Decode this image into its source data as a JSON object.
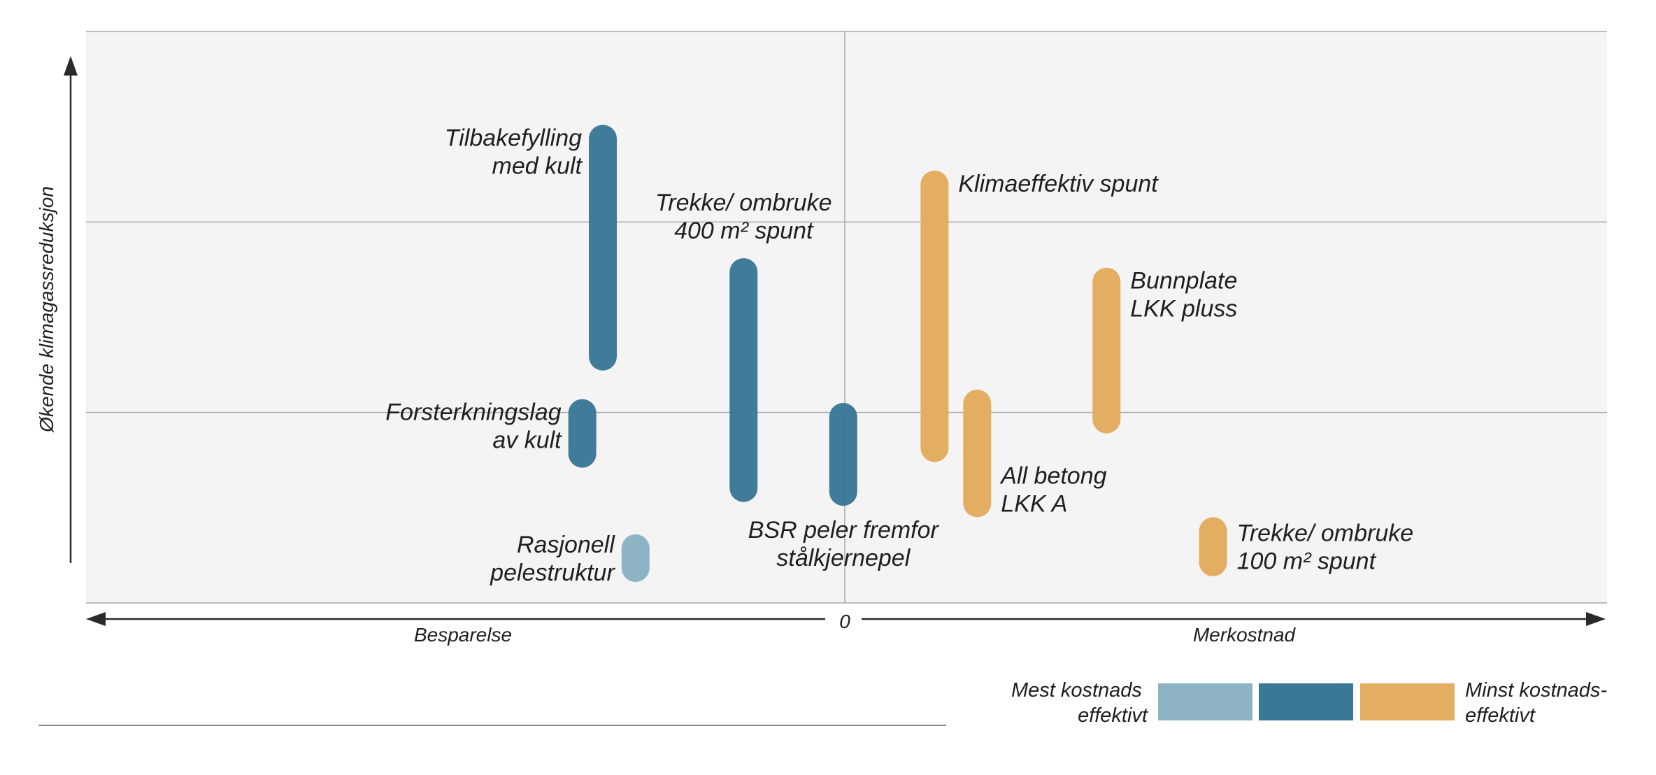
{
  "chart_data": {
    "type": "range-bar",
    "ylabel": "Økende klimagassreduksjon",
    "x_axis": {
      "left_label": "Besparelse",
      "right_label": "Merkostnad",
      "zero_label": "0",
      "xlim": [
        -1,
        1
      ]
    },
    "ylim": [
      0,
      3
    ],
    "grid": true,
    "items": [
      {
        "label": [
          "Tilbakefylling",
          "med kult"
        ],
        "x": -0.318,
        "ymin": 1.22,
        "ymax": 2.51,
        "category": "mid",
        "label_side": "left",
        "label_anchor": "top"
      },
      {
        "label": [
          "Forsterkningslag",
          "av kult"
        ],
        "x": -0.345,
        "ymin": 0.71,
        "ymax": 1.07,
        "category": "mid",
        "label_side": "left",
        "label_anchor": "top"
      },
      {
        "label": [
          "Rasjonell",
          "pelestruktur"
        ],
        "x": -0.275,
        "ymin": 0.11,
        "ymax": 0.36,
        "category": "most",
        "label_side": "left",
        "label_anchor": "mid"
      },
      {
        "label": [
          "Trekke/ ombruke",
          "400 m² spunt"
        ],
        "x": -0.133,
        "ymin": 0.53,
        "ymax": 1.81,
        "category": "mid",
        "label_side": "above",
        "label_anchor": "top"
      },
      {
        "label": [
          "BSR peler fremfor",
          "stålkjernepel"
        ],
        "x": -0.002,
        "ymin": 0.51,
        "ymax": 1.05,
        "category": "mid",
        "label_side": "below",
        "label_anchor": "bottom"
      },
      {
        "label": [
          "Klimaeffektiv spunt"
        ],
        "x": 0.118,
        "ymin": 0.74,
        "ymax": 2.27,
        "category": "least",
        "label_side": "right",
        "label_anchor": "top"
      },
      {
        "label": [
          "All betong",
          "LKK A"
        ],
        "x": 0.174,
        "ymin": 0.45,
        "ymax": 1.12,
        "category": "least",
        "label_side": "right",
        "label_anchor": "bottom"
      },
      {
        "label": [
          "Bunnplate",
          "LKK pluss"
        ],
        "x": 0.344,
        "ymin": 0.89,
        "ymax": 1.76,
        "category": "least",
        "label_side": "right",
        "label_anchor": "top"
      },
      {
        "label": [
          "Trekke/ ombruke",
          "100 m² spunt"
        ],
        "x": 0.484,
        "ymin": 0.14,
        "ymax": 0.45,
        "category": "least",
        "label_side": "right",
        "label_anchor": "mid"
      }
    ],
    "colors": {
      "most": "#8db3c4",
      "mid": "#3b7797",
      "least": "#e4ae62",
      "plot_bg": "#f4f4f4",
      "grid": "#a8a8a8",
      "axis": "#2a2a2a",
      "text": "#1f1f1f"
    },
    "legend": {
      "left_label": [
        "Mest kostnads",
        "effektivt"
      ],
      "right_label": [
        "Minst kostnads-",
        "effektivt"
      ],
      "swatches": [
        "most",
        "mid",
        "least"
      ],
      "position": "bottom-right"
    }
  }
}
